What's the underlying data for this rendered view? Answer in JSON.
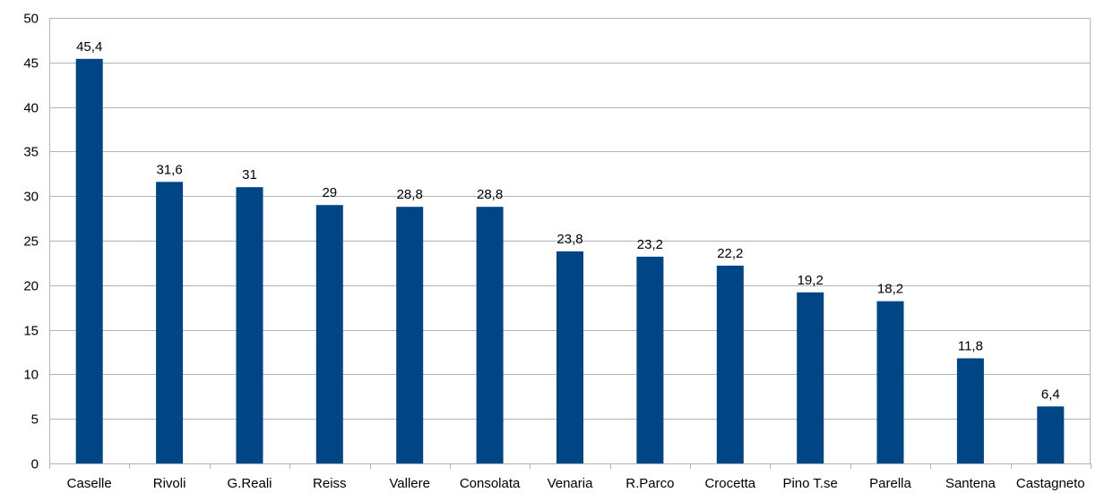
{
  "chart_data": {
    "type": "bar",
    "title": "",
    "xlabel": "",
    "ylabel": "",
    "categories": [
      "Caselle",
      "Rivoli",
      "G.Reali",
      "Reiss",
      "Vallere",
      "Consolata",
      "Venaria",
      "R.Parco",
      "Crocetta",
      "Pino T.se",
      "Parella",
      "Santena",
      "Castagneto"
    ],
    "values": [
      45.4,
      31.6,
      31,
      29,
      28.8,
      28.8,
      23.8,
      23.2,
      22.2,
      19.2,
      18.2,
      11.8,
      6.4
    ],
    "value_labels": [
      "45,4",
      "31,6",
      "31",
      "29",
      "28,8",
      "28,8",
      "23,8",
      "23,2",
      "22,2",
      "19,2",
      "18,2",
      "11,8",
      "6,4"
    ],
    "ylim": [
      0,
      50
    ],
    "yticks": [
      0,
      5,
      10,
      15,
      20,
      25,
      30,
      35,
      40,
      45,
      50
    ],
    "grid": true,
    "legend": "none",
    "colors": {
      "bar": "#004586",
      "grid": "#b3b3b3",
      "axis": "#b3b3b3",
      "text": "#000000",
      "background": "#ffffff"
    }
  }
}
